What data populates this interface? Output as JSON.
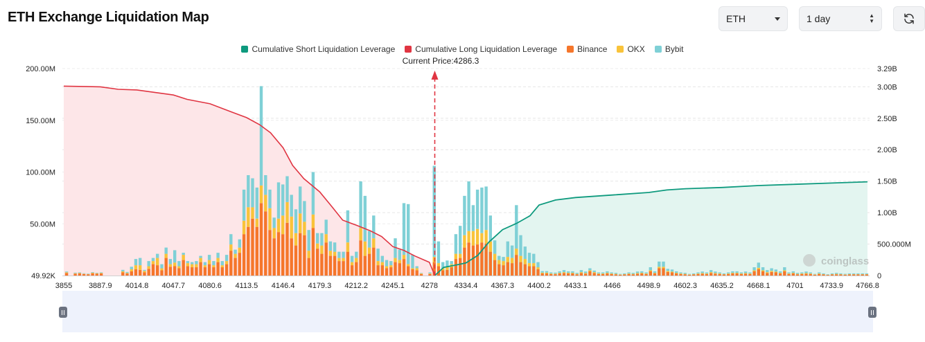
{
  "page": {
    "title": "ETH Exchange Liquidation Map"
  },
  "controls": {
    "symbol": "ETH",
    "range": "1 day",
    "refresh_icon": "refresh-icon"
  },
  "colors": {
    "short_line": "#0e9a7e",
    "short_fill": "#e3f5f0",
    "long_line": "#e03542",
    "long_fill": "#fde6e8",
    "binance": "#f5762b",
    "okx": "#f9c33a",
    "bybit": "#7fd0d6",
    "current_price": "#e03542"
  },
  "legend": [
    {
      "label": "Cumulative Short Liquidation Leverage",
      "color": "#0e9a7e"
    },
    {
      "label": "Cumulative Long Liquidation Leverage",
      "color": "#e03542"
    },
    {
      "label": "Binance",
      "color": "#f5762b"
    },
    {
      "label": "OKX",
      "color": "#f9c33a"
    },
    {
      "label": "Bybit",
      "color": "#7fd0d6"
    }
  ],
  "current_price_label": "Current Price:4286.3",
  "watermark": "coinglass",
  "chart_data": {
    "type": "bar",
    "current_price": 4286.3,
    "x_tick_labels": [
      "3855",
      "3887.9",
      "4014.8",
      "4047.7",
      "4080.6",
      "4113.5",
      "4146.4",
      "4179.3",
      "4212.2",
      "4245.1",
      "4278",
      "4334.4",
      "4367.3",
      "4400.2",
      "4433.1",
      "4466",
      "4498.9",
      "4602.3",
      "4635.2",
      "4668.1",
      "4701",
      "4733.9",
      "4766.8"
    ],
    "y_left": {
      "ticks": [
        "49.92K",
        "50.00M",
        "100.00M",
        "150.00M",
        "200.00M"
      ],
      "range": [
        0,
        200000000
      ]
    },
    "y_right": {
      "ticks": [
        "0",
        "500.000M",
        "1.00B",
        "1.50B",
        "2.00B",
        "2.50B",
        "3.00B",
        "3.29B"
      ],
      "range": [
        0,
        3290000000
      ]
    },
    "grid": "horizontal dashed",
    "series": [
      {
        "name": "Binance",
        "values": [
          2.5,
          0,
          1.8,
          2.0,
          1.5,
          1.2,
          2.2,
          1.8,
          2.0,
          0,
          0,
          0,
          0,
          3.0,
          2.0,
          4.0,
          6.0,
          5.5,
          3.0,
          6.5,
          11.0,
          10.0,
          5.0,
          17.0,
          8.5,
          9.0,
          7.0,
          15.0,
          9.0,
          8.0,
          8.0,
          13.0,
          8.0,
          11.0,
          8.0,
          13.0,
          8.0,
          11.0,
          24.0,
          17.0,
          22.0,
          40.0,
          47.0,
          55.0,
          47.0,
          70.0,
          62.0,
          44.0,
          36.0,
          42.0,
          40.0,
          51.0,
          36.0,
          29.0,
          41.0,
          39.0,
          17.0,
          46.0,
          26.0,
          21.0,
          32.0,
          19.0,
          19.0,
          14.0,
          14.0,
          23.0,
          10.0,
          13.0,
          34.0,
          19.0,
          21.0,
          27.0,
          10.0,
          10.0,
          7.0,
          8.0,
          13.0,
          12.0,
          16.0,
          9.0,
          6.0,
          5.0,
          1.5,
          0,
          1.5,
          13.0,
          9.0,
          5.0,
          5.5,
          8.0,
          16.0,
          17.0,
          27.0,
          32.0,
          29.0,
          30.0,
          32.0,
          31.0,
          23.0,
          15.0,
          11.0,
          10.0,
          13.0,
          12.0,
          20.0,
          13.0,
          11.0,
          9.0,
          9.0,
          6.0,
          2.0,
          2.0,
          1.5,
          1.3,
          2.0,
          2.5,
          2.0,
          2.0,
          1.2,
          2.5,
          1.8,
          4.0,
          2.5,
          1.5,
          1.5,
          2.0,
          1.5,
          1.2,
          0.8,
          1.0,
          1.5,
          1.2,
          1.8,
          2.0,
          1.5,
          4.0,
          2.0,
          7.0,
          7.0,
          3.5,
          3.0,
          2.0,
          1.5,
          1.2,
          0.8,
          1.0,
          1.5,
          1.8,
          1.5,
          2.5,
          1.8,
          1.5,
          1.0,
          1.5,
          2.0,
          2.0,
          1.5,
          1.8,
          1.5,
          4.0,
          6.0,
          4.0,
          2.5,
          3.5,
          3.0,
          2.0,
          4.0,
          1.5,
          2.0,
          1.2,
          1.5,
          1.8,
          1.5,
          0.8,
          1.5,
          1.0,
          0.6,
          1.0,
          1.2,
          1.0,
          0.8,
          1.0,
          1.0,
          1.0,
          1.0,
          1.0
        ],
        "unit": "USD (millions)"
      },
      {
        "name": "OKX",
        "values": [
          0.6,
          0,
          0.4,
          0.5,
          0.3,
          0.3,
          0.5,
          0.4,
          0.5,
          0,
          0,
          0,
          0,
          1.0,
          0.5,
          2.0,
          4.0,
          4.5,
          1.5,
          2.5,
          3.0,
          7.0,
          2.0,
          4.0,
          2.5,
          3.5,
          2.0,
          5.0,
          3.0,
          3.0,
          3.0,
          4.0,
          2.0,
          4.0,
          2.0,
          4.0,
          2.0,
          3.0,
          6.0,
          4.0,
          5.0,
          13.0,
          19.0,
          11.0,
          8.0,
          17.0,
          16.0,
          21.0,
          10.0,
          13.0,
          18.0,
          20.0,
          21.0,
          12.0,
          19.0,
          13.0,
          7.0,
          13.0,
          5.0,
          8.0,
          8.0,
          5.0,
          4.0,
          3.0,
          3.0,
          9.0,
          3.0,
          4.0,
          12.0,
          14.0,
          6.0,
          9.0,
          4.0,
          3.0,
          2.0,
          2.0,
          4.0,
          3.0,
          4.0,
          2.0,
          1.0,
          2.0,
          0.5,
          0,
          0.5,
          5.0,
          3.0,
          2.0,
          3.0,
          3.0,
          5.0,
          4.0,
          12.0,
          11.0,
          14.0,
          15.0,
          9.0,
          13.0,
          10.0,
          6.0,
          4.0,
          4.0,
          5.0,
          5.0,
          6.0,
          6.0,
          5.0,
          3.0,
          3.0,
          2.0,
          0.8,
          0.8,
          0.5,
          0.5,
          0.6,
          0.8,
          0.6,
          0.6,
          0.4,
          0.8,
          0.6,
          1.0,
          0.8,
          0.5,
          0.5,
          0.6,
          0.5,
          0.4,
          0.3,
          0.3,
          0.5,
          0.4,
          0.6,
          0.6,
          0.5,
          1.0,
          0.6,
          1.5,
          1.5,
          1.0,
          0.8,
          0.6,
          0.5,
          0.4,
          0.3,
          0.3,
          0.5,
          0.6,
          0.5,
          0.8,
          0.6,
          0.5,
          0.3,
          0.5,
          0.6,
          0.6,
          0.5,
          0.6,
          0.5,
          1.0,
          1.5,
          1.0,
          0.8,
          1.0,
          0.8,
          0.6,
          1.0,
          0.5,
          0.6,
          0.4,
          0.5,
          0.6,
          0.5,
          0.3,
          0.5,
          0.3,
          0.2,
          0.3,
          0.4,
          0.3,
          0.3,
          0.3,
          0.3,
          0.3,
          0.3,
          0.3
        ],
        "unit": "USD (millions)"
      },
      {
        "name": "Bybit",
        "values": [
          0.8,
          0,
          0.6,
          0.6,
          0.4,
          0.4,
          0.6,
          0.5,
          0.6,
          0,
          0,
          0,
          0,
          1.5,
          1.0,
          2.5,
          6.0,
          7.0,
          1.0,
          5.0,
          3.0,
          4.0,
          4.0,
          6.0,
          5.0,
          12.0,
          5.0,
          2.0,
          2.0,
          2.0,
          3.0,
          2.0,
          3.0,
          5.0,
          4.0,
          5.0,
          4.0,
          6.0,
          10.0,
          4.0,
          8.0,
          30.0,
          31.0,
          28.0,
          30.0,
          96.0,
          19.0,
          18.0,
          10.0,
          35.0,
          30.0,
          25.0,
          21.0,
          23.0,
          26.0,
          20.0,
          20.0,
          41.0,
          10.0,
          12.0,
          14.0,
          9.0,
          9.0,
          6.0,
          6.0,
          31.0,
          6.0,
          6.0,
          45.0,
          44.0,
          16.0,
          22.0,
          12.0,
          6.0,
          6.0,
          4.0,
          19.0,
          10.0,
          50.0,
          58.0,
          13.0,
          2.0,
          0.5,
          0,
          1.0,
          88.0,
          21.0,
          6.0,
          6.0,
          3.0,
          19.0,
          27.0,
          38.0,
          48.0,
          25.0,
          38.0,
          44.0,
          42.0,
          25.0,
          13.0,
          4.0,
          4.0,
          15.0,
          12.0,
          42.0,
          20.0,
          12.0,
          10.0,
          9.0,
          5.0,
          1.5,
          1.5,
          1.0,
          1.0,
          1.5,
          2.0,
          1.5,
          1.5,
          1.0,
          2.0,
          1.5,
          2.0,
          1.5,
          1.0,
          1.0,
          1.5,
          1.0,
          1.0,
          0.5,
          0.8,
          1.0,
          1.0,
          1.5,
          1.5,
          1.0,
          3.0,
          1.5,
          5.0,
          5.0,
          2.0,
          2.0,
          1.5,
          1.0,
          1.0,
          0.5,
          0.8,
          1.0,
          1.5,
          1.0,
          2.0,
          1.5,
          1.0,
          0.8,
          1.0,
          1.5,
          1.5,
          1.0,
          1.5,
          1.0,
          3.0,
          5.0,
          3.0,
          2.0,
          2.5,
          2.0,
          1.5,
          3.0,
          1.0,
          1.5,
          1.0,
          1.0,
          1.5,
          1.0,
          0.5,
          1.0,
          0.8,
          0.5,
          0.8,
          1.0,
          0.8,
          0.6,
          0.8,
          0.8,
          0.8,
          0.8,
          0.8
        ],
        "unit": "USD (millions)"
      },
      {
        "name": "Cumulative Long Liquidation Leverage",
        "unit": "USD (billions)",
        "points": [
          [
            3855,
            3.01
          ],
          [
            3887.9,
            3.0
          ],
          [
            3950,
            2.96
          ],
          [
            4014.8,
            2.95
          ],
          [
            4047.7,
            2.87
          ],
          [
            4060,
            2.8
          ],
          [
            4080.6,
            2.73
          ],
          [
            4100,
            2.6
          ],
          [
            4113.5,
            2.51
          ],
          [
            4125,
            2.4
          ],
          [
            4135,
            2.27
          ],
          [
            4146.4,
            2.03
          ],
          [
            4155,
            1.75
          ],
          [
            4165,
            1.54
          ],
          [
            4179.3,
            1.33
          ],
          [
            4190,
            1.1
          ],
          [
            4200,
            0.88
          ],
          [
            4212.2,
            0.8
          ],
          [
            4225,
            0.71
          ],
          [
            4235,
            0.62
          ],
          [
            4245.1,
            0.46
          ],
          [
            4255,
            0.4
          ],
          [
            4265,
            0.31
          ],
          [
            4278,
            0.21
          ],
          [
            4286.3,
            0
          ]
        ]
      },
      {
        "name": "Cumulative Short Liquidation Leverage",
        "unit": "USD (billions)",
        "points": [
          [
            4286.3,
            0
          ],
          [
            4300,
            0.13
          ],
          [
            4320,
            0.17
          ],
          [
            4334.4,
            0.2
          ],
          [
            4345,
            0.32
          ],
          [
            4355,
            0.53
          ],
          [
            4367.3,
            0.73
          ],
          [
            4380,
            0.83
          ],
          [
            4392,
            0.95
          ],
          [
            4400.2,
            1.12
          ],
          [
            4415,
            1.2
          ],
          [
            4433.1,
            1.24
          ],
          [
            4466,
            1.28
          ],
          [
            4498.9,
            1.32
          ],
          [
            4550,
            1.36
          ],
          [
            4602.3,
            1.38
          ],
          [
            4635.2,
            1.4
          ],
          [
            4668.1,
            1.43
          ],
          [
            4701,
            1.45
          ],
          [
            4733.9,
            1.47
          ],
          [
            4766.8,
            1.49
          ]
        ]
      }
    ]
  }
}
